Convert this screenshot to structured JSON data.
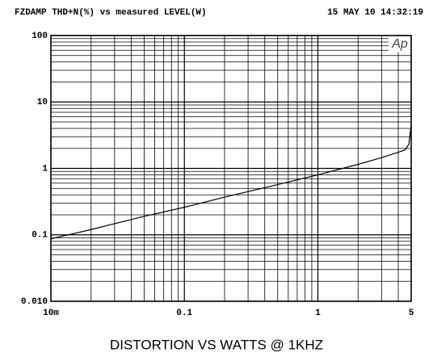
{
  "chart_data": {
    "type": "line",
    "title": "FZDAMP THD+N(%) vs measured LEVEL(W)",
    "timestamp": "15 MAY 10 14:32:19",
    "logo": "Ap",
    "caption": "DISTORTION VS WATTS @ 1KHZ",
    "x": [
      0.01,
      0.02,
      0.05,
      0.1,
      0.2,
      0.5,
      1,
      2,
      3,
      4,
      4.5,
      4.8,
      5
    ],
    "values": [
      0.087,
      0.12,
      0.19,
      0.26,
      0.37,
      0.57,
      0.8,
      1.15,
      1.45,
      1.75,
      1.9,
      2.3,
      4.5
    ],
    "color": "#000000",
    "xlim": [
      0.01,
      5
    ],
    "xticks": [
      {
        "value": 0.01,
        "label": "10m"
      },
      0.1,
      1,
      5
    ],
    "ylim": [
      0.01,
      100
    ],
    "yticks": [
      {
        "value": 0.01,
        "label": "0.010"
      },
      0.1,
      1,
      10,
      100
    ],
    "xscale": "log",
    "yscale": "log",
    "grid": true,
    "minor_grid": true
  }
}
